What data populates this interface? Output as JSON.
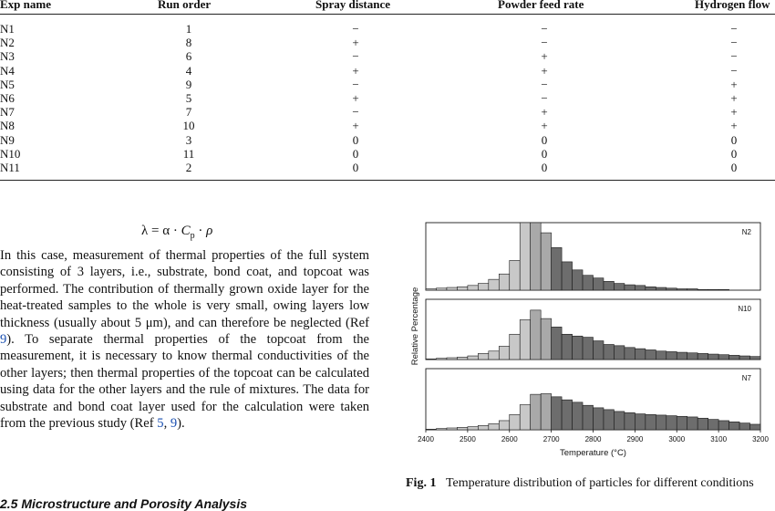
{
  "table": {
    "headers": [
      "Exp name",
      "Run order",
      "Spray distance",
      "Powder feed rate",
      "Hydrogen flow"
    ],
    "rows": [
      [
        "N1",
        "1",
        "−",
        "−",
        "−"
      ],
      [
        "N2",
        "8",
        "+",
        "−",
        "−"
      ],
      [
        "N3",
        "6",
        "−",
        "+",
        "−"
      ],
      [
        "N4",
        "4",
        "+",
        "+",
        "−"
      ],
      [
        "N5",
        "9",
        "−",
        "−",
        "+"
      ],
      [
        "N6",
        "5",
        "+",
        "−",
        "+"
      ],
      [
        "N7",
        "7",
        "−",
        "+",
        "+"
      ],
      [
        "N8",
        "10",
        "+",
        "+",
        "+"
      ],
      [
        "N9",
        "3",
        "0",
        "0",
        "0"
      ],
      [
        "N10",
        "11",
        "0",
        "0",
        "0"
      ],
      [
        "N11",
        "2",
        "0",
        "0",
        "0"
      ]
    ]
  },
  "equation": {
    "lhs": "λ = α · ",
    "cp": "C",
    "cp_sub": "p",
    "rest": " · ",
    "rho": "ρ"
  },
  "paragraph": {
    "text_a": "In this case, measurement of thermal properties of the full system consisting of 3 layers, i.e., substrate, bond coat, and topcoat was performed. The contribution of thermally grown oxide layer for the heat-treated samples to the whole is very small, owing layers low thickness (usually about 5 μm), and can therefore be neglected (Ref ",
    "ref1": "9",
    "text_b": "). To separate thermal properties of the topcoat from the measurement, it is necessary to know thermal conductiv­ities of the other layers; then thermal properties of the topcoat can be calculated using data for the other layers and the rule of mixtures. The data for substrate and bond coat layer used for the calculation were taken from the previous study (Ref ",
    "ref2": "5",
    "sep": ", ",
    "ref3": "9",
    "text_c": ")."
  },
  "section_title": "2.5 Microstructure and Porosity Analysis",
  "figure": {
    "caption_label": "Fig. 1",
    "caption_text": "Temperature distribution of particles for different conditions"
  },
  "chart_data": {
    "type": "bar",
    "xlabel": "Temperature (°C)",
    "ylabel": "Relative Percentage",
    "xlim": [
      2400,
      3200
    ],
    "xticks": [
      2400,
      2500,
      2600,
      2700,
      2800,
      2900,
      3000,
      3100,
      3200
    ],
    "bin_width": 25,
    "panels": [
      {
        "name": "N2",
        "values": [
          2,
          3,
          4,
          5,
          7,
          10,
          16,
          24,
          44,
          100,
          100,
          85,
          63,
          42,
          30,
          22,
          18,
          13,
          10,
          8,
          7,
          5,
          4,
          3,
          2,
          2,
          1,
          1,
          1,
          0,
          0,
          0
        ],
        "ylim": [
          0,
          100
        ]
      },
      {
        "name": "N10",
        "values": [
          1,
          2,
          3,
          4,
          6,
          10,
          14,
          22,
          42,
          66,
          82,
          68,
          54,
          42,
          39,
          37,
          31,
          25,
          23,
          20,
          18,
          16,
          14,
          13,
          12,
          11,
          10,
          9,
          8,
          7,
          6,
          5
        ],
        "ylim": [
          0,
          100
        ]
      },
      {
        "name": "N7",
        "values": [
          1,
          2,
          3,
          4,
          5,
          7,
          10,
          15,
          25,
          41,
          58,
          59,
          54,
          49,
          45,
          40,
          36,
          33,
          30,
          28,
          26,
          25,
          24,
          23,
          22,
          21,
          19,
          17,
          15,
          13,
          11,
          9
        ],
        "ylim": [
          0,
          100
        ]
      }
    ],
    "colors": {
      "light": "#c8c8c8",
      "medium": "#a9a9a9",
      "dark": "#6d6d6d",
      "stroke": "#1a1a1a"
    }
  }
}
